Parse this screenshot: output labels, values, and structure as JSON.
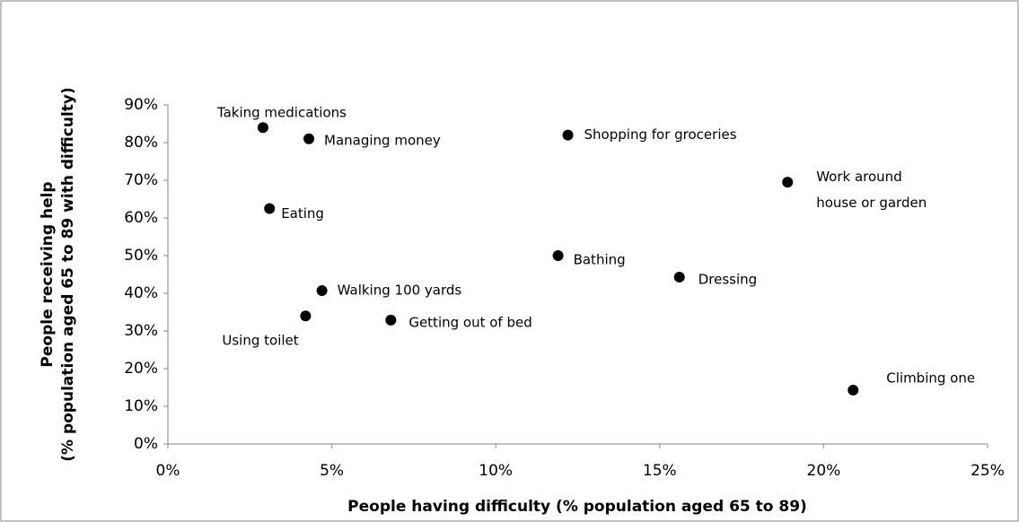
{
  "chart_data": {
    "type": "scatter",
    "x_label": "People having difficulty (% population aged 65 to 89)",
    "y_label": [
      "People receiving help",
      "(% population aged 65 to 89 with difficulty)"
    ],
    "labels": [
      "Taking medications",
      "Managing money",
      "Shopping for groceries",
      "Work around\nhouse or garden",
      "Eating",
      "Bathing",
      "Dressing",
      "Walking 100 yards",
      "Using toilet",
      "Getting out of bed",
      "Climbing one"
    ],
    "x": [
      2.9,
      4.3,
      12.2,
      18.9,
      3.1,
      11.9,
      15.6,
      4.7,
      4.2,
      6.8,
      20.9
    ],
    "y": [
      84,
      81,
      82,
      69.5,
      62.5,
      50,
      44.3,
      40.7,
      34,
      32.9,
      14.3
    ],
    "color": "#000000",
    "xlim": [
      0,
      25
    ],
    "xticks": [
      {
        "value": 0,
        "label": "0%"
      },
      {
        "value": 5,
        "label": "5%"
      },
      {
        "value": 10,
        "label": "10%"
      },
      {
        "value": 15,
        "label": "15%"
      },
      {
        "value": 20,
        "label": "20%"
      },
      {
        "value": 25,
        "label": "25%"
      }
    ],
    "ylim": [
      0,
      90
    ],
    "yticks": [
      {
        "value": 0,
        "label": "0%"
      },
      {
        "value": 10,
        "label": "10%"
      },
      {
        "value": 20,
        "label": "20%"
      },
      {
        "value": 30,
        "label": "30%"
      },
      {
        "value": 40,
        "label": "40%"
      },
      {
        "value": 50,
        "label": "50%"
      },
      {
        "value": 60,
        "label": "60%"
      },
      {
        "value": 70,
        "label": "70%"
      },
      {
        "value": 80,
        "label": "80%"
      },
      {
        "value": 90,
        "label": "90%"
      }
    ],
    "grid": false
  }
}
